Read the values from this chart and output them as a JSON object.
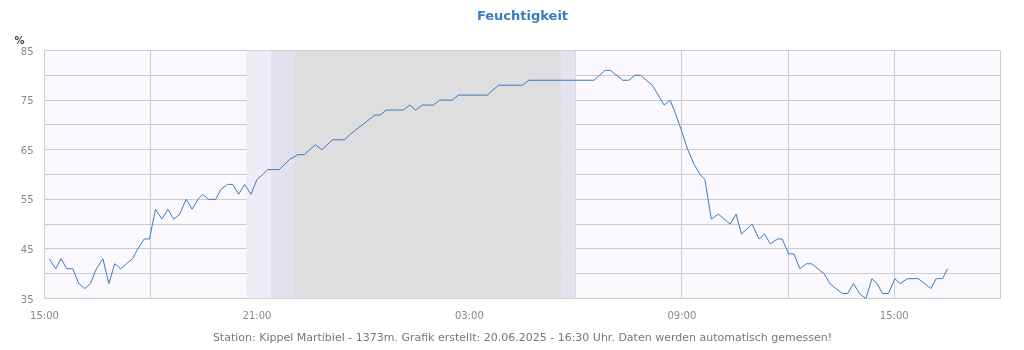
{
  "chart_data": {
    "type": "line",
    "title": "Feuchtigkeit",
    "ylabel": "%",
    "annotations": [
      "Station: Kippel Martibiel - 1373m. Grafik erstellt: 20.06.2025 - 16:30 Uhr. Daten werden automatisch gemessen!"
    ],
    "series": [
      {
        "color": "#3a7bbf",
        "x": [
          "2025-06-19T15:08",
          "2025-06-19T15:19",
          "2025-06-19T15:28",
          "2025-06-19T15:38",
          "2025-06-19T15:48",
          "2025-06-19T15:58",
          "2025-06-19T16:08",
          "2025-06-19T16:18",
          "2025-06-19T16:28",
          "2025-06-19T16:39",
          "2025-06-19T16:49",
          "2025-06-19T16:59",
          "2025-06-19T17:09",
          "2025-06-19T17:19",
          "2025-06-19T17:29",
          "2025-06-19T17:38",
          "2025-06-19T17:49",
          "2025-06-19T17:58",
          "2025-06-19T18:08",
          "2025-06-19T18:19",
          "2025-06-19T18:29",
          "2025-06-19T18:39",
          "2025-06-19T18:49",
          "2025-06-19T19:00",
          "2025-06-19T19:10",
          "2025-06-19T19:20",
          "2025-06-19T19:28",
          "2025-06-19T19:38",
          "2025-06-19T19:50",
          "2025-06-19T19:59",
          "2025-06-19T20:10",
          "2025-06-19T20:19",
          "2025-06-19T20:29",
          "2025-06-19T20:39",
          "2025-06-19T20:50",
          "2025-06-19T21:00",
          "2025-06-19T21:10",
          "2025-06-19T21:18",
          "2025-06-19T21:38",
          "2025-06-19T21:55",
          "2025-06-19T22:09",
          "2025-06-19T22:20",
          "2025-06-19T22:39",
          "2025-06-19T22:50",
          "2025-06-19T23:08",
          "2025-06-19T23:29",
          "2025-06-19T23:37",
          "2025-06-20T00:20",
          "2025-06-20T00:29",
          "2025-06-20T00:39",
          "2025-06-20T01:08",
          "2025-06-20T01:19",
          "2025-06-20T01:29",
          "2025-06-20T01:40",
          "2025-06-20T01:59",
          "2025-06-20T02:10",
          "2025-06-20T02:31",
          "2025-06-20T02:41",
          "2025-06-20T03:30",
          "2025-06-20T03:49",
          "2025-06-20T04:30",
          "2025-06-20T04:41",
          "2025-06-20T06:31",
          "2025-06-20T06:50",
          "2025-06-20T06:59",
          "2025-06-20T07:20",
          "2025-06-20T07:30",
          "2025-06-20T07:41",
          "2025-06-20T07:50",
          "2025-06-20T08:10",
          "2025-06-20T08:30",
          "2025-06-20T08:40",
          "2025-06-20T08:47",
          "2025-06-20T08:59",
          "2025-06-20T09:10",
          "2025-06-20T09:21",
          "2025-06-20T09:31",
          "2025-06-20T09:39",
          "2025-06-20T09:50",
          "2025-06-20T10:02",
          "2025-06-20T10:22",
          "2025-06-20T10:32",
          "2025-06-20T10:41",
          "2025-06-20T10:59",
          "2025-06-20T11:11",
          "2025-06-20T11:20",
          "2025-06-20T11:30",
          "2025-06-20T11:42",
          "2025-06-20T11:50",
          "2025-06-20T12:01",
          "2025-06-20T12:10",
          "2025-06-20T12:20",
          "2025-06-20T12:31",
          "2025-06-20T12:40",
          "2025-06-20T13:01",
          "2025-06-20T13:11",
          "2025-06-20T13:21",
          "2025-06-20T13:32",
          "2025-06-20T13:41",
          "2025-06-20T13:51",
          "2025-06-20T14:01",
          "2025-06-20T14:12",
          "2025-06-20T14:22",
          "2025-06-20T14:31",
          "2025-06-20T14:40",
          "2025-06-20T14:50",
          "2025-06-20T15:01",
          "2025-06-20T15:10",
          "2025-06-20T15:22",
          "2025-06-20T15:41",
          "2025-06-20T16:02",
          "2025-06-20T16:11",
          "2025-06-20T16:22",
          "2025-06-20T16:30"
        ],
        "values": [
          43,
          41,
          43,
          41,
          41,
          38,
          37,
          38,
          41,
          43,
          38,
          42,
          41,
          42,
          43,
          45,
          47,
          47,
          53,
          51,
          53,
          51,
          52,
          55,
          53,
          55,
          56,
          55,
          55,
          57,
          58,
          58,
          56,
          58,
          56,
          59,
          60,
          61,
          61,
          63,
          64,
          64,
          66,
          65,
          67,
          67,
          68,
          72,
          72,
          73,
          73,
          74,
          73,
          74,
          74,
          75,
          75,
          76,
          76,
          78,
          78,
          79,
          79,
          81,
          81,
          79,
          79,
          80,
          80,
          78,
          74,
          75,
          73,
          69,
          65,
          62,
          60,
          59,
          51,
          52,
          50,
          52,
          48,
          50,
          47,
          48,
          46,
          47,
          47,
          44,
          44,
          41,
          42,
          42,
          40,
          38,
          37,
          36,
          36,
          38,
          36,
          35,
          39,
          38,
          36,
          36,
          39,
          38,
          39,
          39,
          37,
          39,
          39,
          41
        ]
      }
    ],
    "xlim": [
      "2025-06-19T15:00",
      "2025-06-20T18:00"
    ],
    "ylim": [
      35,
      85
    ],
    "xticks": [
      {
        "value": "2025-06-19T15:00",
        "label": "15:00"
      },
      {
        "value": "2025-06-19T18:00",
        "label": null
      },
      {
        "value": "2025-06-19T21:00",
        "label": "21:00"
      },
      {
        "value": "2025-06-20T00:00",
        "label": null
      },
      {
        "value": "2025-06-20T03:00",
        "label": "03:00"
      },
      {
        "value": "2025-06-20T06:00",
        "label": null
      },
      {
        "value": "2025-06-20T09:00",
        "label": "09:00"
      },
      {
        "value": "2025-06-20T12:00",
        "label": null
      },
      {
        "value": "2025-06-20T15:00",
        "label": "15:00"
      }
    ],
    "yticks": [
      35,
      {
        "value": 40,
        "label": null
      },
      45,
      {
        "value": 50,
        "label": null
      },
      55,
      {
        "value": 60,
        "label": null
      },
      65,
      {
        "value": 70,
        "label": null
      },
      75,
      {
        "value": 80,
        "label": null
      },
      85
    ],
    "bands": [
      {
        "axis": "x",
        "from": "2025-06-19T20:42",
        "to": "2025-06-19T21:24",
        "color": "#efebf7"
      },
      {
        "axis": "x",
        "from": "2025-06-19T21:24",
        "to": "2025-06-19T22:03",
        "color": "#e3e1ed"
      },
      {
        "axis": "x",
        "from": "2025-06-19T22:03",
        "to": "2025-06-20T05:36",
        "color": "#dedee1"
      },
      {
        "axis": "x",
        "from": "2025-06-20T05:36",
        "to": "2025-06-20T06:00",
        "color": "#e6e3f0"
      }
    ],
    "grid": true,
    "marker": "none",
    "line_style": "solid"
  }
}
